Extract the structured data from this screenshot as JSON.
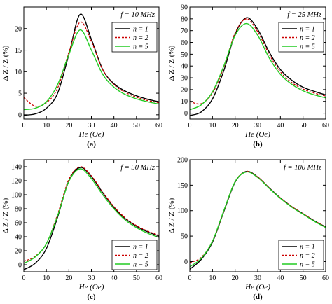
{
  "figure": {
    "legend": {
      "n1": "n = 1",
      "n2": "n = 2",
      "n5": "n = 5"
    },
    "colors": {
      "n1": "#000000",
      "n2": "#cc0000",
      "n5": "#22cc22"
    }
  },
  "chart_data": [
    {
      "type": "line",
      "panel_label": "(a)",
      "frequency_label": "f = 10 MHz",
      "xlabel": "He (Oe)",
      "ylabel": "Δ Z / Z (%)",
      "xlim": [
        0,
        60
      ],
      "ylim": [
        -1,
        25
      ],
      "xticks": [
        0,
        10,
        20,
        30,
        40,
        50,
        60
      ],
      "yticks": [
        0,
        5,
        10,
        15,
        20
      ],
      "legend_position": "top-right",
      "x": [
        0,
        5,
        10,
        15,
        20,
        25,
        30,
        35,
        40,
        45,
        50,
        55,
        60
      ],
      "series": [
        {
          "name": "n = 1",
          "style": "solid",
          "values": [
            -0.1,
            0.2,
            1.5,
            5,
            14,
            23.3,
            17.5,
            10.5,
            7.2,
            5.5,
            4.4,
            3.6,
            3.0
          ]
        },
        {
          "name": "n = 2",
          "style": "dashed",
          "values": [
            4.0,
            2.0,
            2.8,
            6.2,
            14.5,
            21.5,
            17.0,
            10.5,
            7.0,
            5.2,
            4.1,
            3.3,
            2.8
          ]
        },
        {
          "name": "n = 5",
          "style": "solid",
          "values": [
            1.2,
            1.5,
            3.0,
            7.0,
            14.0,
            19.7,
            15.0,
            9.4,
            6.4,
            4.7,
            3.7,
            3.0,
            2.5
          ]
        }
      ]
    },
    {
      "type": "line",
      "panel_label": "(b)",
      "frequency_label": "f = 25 MHz",
      "xlabel": "He (Oe)",
      "ylabel": "Δ Z / Z (%)",
      "xlim": [
        0,
        60
      ],
      "ylim": [
        -5,
        90
      ],
      "xticks": [
        0,
        10,
        20,
        30,
        40,
        50,
        60
      ],
      "yticks": [
        0,
        10,
        20,
        30,
        40,
        50,
        60,
        70,
        80,
        90
      ],
      "legend_position": "top-right",
      "x": [
        0,
        5,
        10,
        15,
        20,
        25,
        30,
        35,
        40,
        45,
        50,
        55,
        60
      ],
      "series": [
        {
          "name": "n = 1",
          "style": "solid",
          "values": [
            -2,
            1,
            12,
            36,
            67,
            81,
            71,
            52,
            37,
            28,
            22,
            18.5,
            15.5
          ]
        },
        {
          "name": "n = 2",
          "style": "dashed",
          "values": [
            10,
            8,
            17,
            39,
            68,
            80,
            69,
            50,
            35,
            26,
            20.5,
            17,
            14.5
          ]
        },
        {
          "name": "n = 5",
          "style": "solid",
          "values": [
            3,
            7,
            18,
            40,
            66,
            76,
            66,
            47,
            33,
            24.5,
            19,
            15.5,
            13
          ]
        }
      ]
    },
    {
      "type": "line",
      "panel_label": "(c)",
      "frequency_label": "f = 50 MHz",
      "xlabel": "He (Oe)",
      "ylabel": "Δ Z / Z (%)",
      "xlim": [
        0,
        60
      ],
      "ylim": [
        -10,
        150
      ],
      "xticks": [
        0,
        10,
        20,
        30,
        40,
        50,
        60
      ],
      "yticks": [
        0,
        20,
        40,
        60,
        80,
        100,
        120,
        140
      ],
      "legend_position": "bottom-right",
      "x": [
        0,
        5,
        10,
        15,
        20,
        25,
        30,
        35,
        40,
        45,
        50,
        55,
        60
      ],
      "series": [
        {
          "name": "n = 1",
          "style": "solid",
          "values": [
            -7,
            2,
            23,
            68,
            120,
            139,
            126,
            103,
            82,
            66,
            55,
            47,
            41
          ]
        },
        {
          "name": "n = 2",
          "style": "dashed",
          "values": [
            5,
            12,
            30,
            72,
            122,
            140,
            127,
            104,
            83,
            67,
            56,
            48,
            42
          ]
        },
        {
          "name": "n = 5",
          "style": "solid",
          "values": [
            2,
            11,
            30,
            70,
            119,
            137,
            123,
            100,
            80,
            64,
            53,
            45,
            39
          ]
        }
      ]
    },
    {
      "type": "line",
      "panel_label": "(d)",
      "frequency_label": "f = 100 MHz",
      "xlabel": "He (Oe)",
      "ylabel": "Δ Z / Z (%)",
      "xlim": [
        0,
        60
      ],
      "ylim": [
        -20,
        200
      ],
      "xticks": [
        0,
        10,
        20,
        30,
        40,
        50,
        60
      ],
      "yticks": [
        0,
        50,
        100,
        150,
        200
      ],
      "legend_position": "bottom-right",
      "x": [
        0,
        5,
        10,
        15,
        20,
        25,
        30,
        35,
        40,
        45,
        50,
        55,
        60
      ],
      "series": [
        {
          "name": "n = 1",
          "style": "solid",
          "values": [
            -15,
            4,
            38,
            98,
            156,
            177,
            166,
            145,
            125,
            108,
            94,
            80,
            68
          ]
        },
        {
          "name": "n = 2",
          "style": "dashed",
          "values": [
            -2,
            8,
            40,
            99,
            157,
            177,
            166,
            145,
            125,
            108,
            94,
            80,
            68
          ]
        },
        {
          "name": "n = 5",
          "style": "solid",
          "values": [
            -10,
            6,
            40,
            100,
            157,
            176,
            165,
            144,
            124,
            107,
            93,
            79,
            67
          ]
        }
      ]
    }
  ]
}
